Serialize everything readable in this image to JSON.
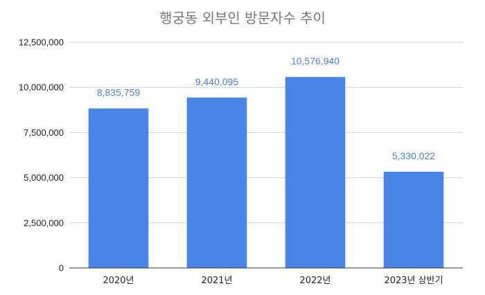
{
  "chart_data": {
    "type": "bar",
    "title": "행궁동 외부인 방문자수 추이",
    "xlabel": "",
    "ylabel": "",
    "categories": [
      "2020년",
      "2021년",
      "2022년",
      "2023년 상반기"
    ],
    "values": [
      8835759,
      9440095,
      10576940,
      5330022
    ],
    "data_labels": [
      "8,835,759",
      "9,440,095",
      "10,576,940",
      "5,330,022"
    ],
    "ylim": [
      0,
      12500000
    ],
    "yticks": [
      0,
      2500000,
      5000000,
      7500000,
      10000000,
      12500000
    ],
    "ytick_labels": [
      "0",
      "2,500,000",
      "5,000,000",
      "7,500,000",
      "10,000,000",
      "12,500,000"
    ],
    "grid": true,
    "legend": "none",
    "colors": {
      "bar": "#4a86e8",
      "data_label": "#4a7fd0",
      "title": "#757575"
    }
  }
}
